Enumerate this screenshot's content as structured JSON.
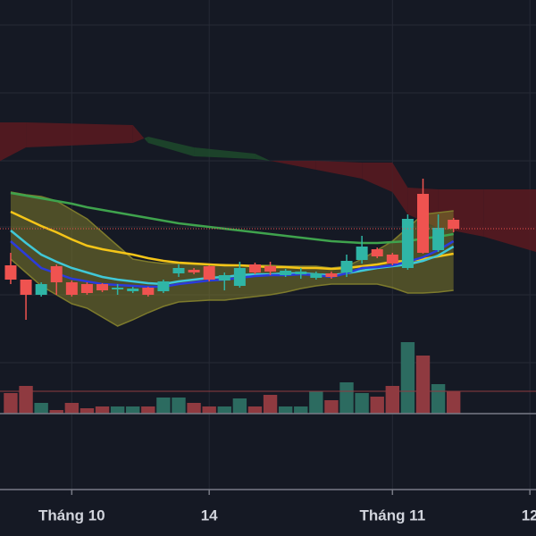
{
  "chart_data": {
    "type": "candlestick",
    "x": [
      0,
      1,
      2,
      3,
      4,
      5,
      6,
      7,
      8,
      9,
      10,
      11,
      12,
      13,
      14,
      15,
      16,
      17,
      18,
      19,
      20,
      21,
      22,
      23,
      24,
      25,
      26,
      27,
      28,
      29
    ],
    "open": [
      253,
      237,
      220,
      252,
      234,
      232,
      232,
      226,
      224,
      228,
      224,
      244,
      248,
      252,
      236,
      230,
      254,
      252,
      242,
      243,
      239,
      244,
      245,
      259,
      271,
      265,
      250,
      333,
      270,
      304
    ],
    "high": [
      267,
      237,
      234,
      254,
      236,
      234,
      233,
      232,
      229,
      229,
      237,
      254,
      250,
      253,
      245,
      257,
      256,
      257,
      249,
      250,
      246,
      246,
      265,
      286,
      273,
      267,
      310,
      350,
      310,
      306
    ],
    "low": [
      232,
      192,
      218,
      220,
      218,
      220,
      223,
      220,
      222,
      218,
      222,
      240,
      243,
      235,
      225,
      228,
      243,
      242,
      240,
      238,
      237,
      238,
      240,
      255,
      261,
      253,
      248,
      266,
      268,
      290
    ],
    "close": [
      237,
      220,
      232,
      234,
      220,
      222,
      225,
      228,
      227,
      220,
      235,
      250,
      245,
      237,
      242,
      250,
      245,
      246,
      247,
      246,
      244,
      240,
      258,
      274,
      263,
      255,
      305,
      267,
      295,
      294
    ],
    "up_color": "#2fb5a6",
    "down_color": "#ef5350",
    "lines": [
      {
        "color": "#3fa34d",
        "values": [
          334,
          331,
          328,
          325,
          322,
          318,
          315,
          312,
          309,
          306,
          303,
          300,
          298,
          296,
          294,
          292,
          290,
          288,
          286,
          284,
          282,
          280,
          279,
          278,
          278,
          279,
          280,
          283,
          285,
          288
        ]
      },
      {
        "color": "#f5c518",
        "values": [
          313,
          305,
          297,
          290,
          282,
          275,
          271,
          268,
          265,
          261,
          258,
          256,
          255,
          254,
          253,
          253,
          252,
          251,
          251,
          250,
          250,
          249,
          250,
          252,
          254,
          257,
          258,
          260,
          263,
          266
        ]
      },
      {
        "color": "#40c8d8",
        "values": [
          292,
          278,
          265,
          257,
          250,
          245,
          240,
          237,
          235,
          233,
          232,
          235,
          237,
          239,
          240,
          242,
          243,
          243,
          244,
          244,
          243,
          242,
          244,
          247,
          250,
          252,
          254,
          258,
          264,
          274
        ]
      },
      {
        "color": "#2b3bdc",
        "values": [
          280,
          265,
          250,
          244,
          238,
          235,
          232,
          231,
          230,
          229,
          229,
          232,
          234,
          236,
          237,
          239,
          241,
          242,
          242,
          243,
          242,
          240,
          244,
          250,
          251,
          253,
          257,
          262,
          270,
          280
        ]
      }
    ],
    "band": {
      "color": "#7d7a2c",
      "upper": [
        335,
        332,
        330,
        325,
        315,
        305,
        290,
        275,
        260,
        257,
        255,
        255,
        254,
        254,
        254,
        253,
        253,
        253,
        252,
        252,
        252,
        250,
        252,
        260,
        270,
        280,
        295,
        310,
        312,
        314
      ],
      "lower": [
        260,
        245,
        230,
        220,
        210,
        205,
        195,
        185,
        192,
        200,
        207,
        212,
        213,
        214,
        214,
        216,
        218,
        220,
        223,
        227,
        230,
        232,
        232,
        232,
        232,
        228,
        222,
        222,
        223,
        225
      ]
    },
    "cloud": {
      "x": [
        -1,
        1,
        8,
        9,
        12,
        16,
        17,
        20,
        23,
        25,
        26,
        28,
        31,
        35
      ],
      "span_a": [
        367,
        385,
        390,
        397,
        385,
        378,
        370,
        360,
        350,
        335,
        310,
        295,
        285,
        265
      ],
      "span_b": [
        413,
        413,
        410,
        390,
        375,
        372,
        370,
        370,
        368,
        368,
        340,
        338,
        338,
        338
      ],
      "up_color": "#1d4a2c",
      "down_color": "#5a1a20"
    },
    "volume": {
      "values": [
        23,
        31,
        12,
        4,
        12,
        6,
        8,
        8,
        8,
        8,
        18,
        18,
        12,
        8,
        8,
        17,
        8,
        21,
        8,
        8,
        25,
        15,
        35,
        23,
        19,
        31,
        80,
        65,
        33,
        25
      ],
      "up_color": "#2c6b60",
      "down_color": "#8f3a40"
    },
    "xlim": [
      -0.7,
      34.4
    ],
    "ylim": [
      0,
      550
    ],
    "y2lim": [
      0,
      463
    ],
    "yticks": [
      144,
      220,
      296,
      370,
      446,
      522
    ],
    "xticks": [
      {
        "value": 4,
        "label": "Tháng 10"
      },
      {
        "value": 13,
        "label": "14"
      },
      {
        "value": 25,
        "label": "Tháng 11"
      },
      {
        "value": 34,
        "label": "12"
      }
    ],
    "grid": true
  }
}
